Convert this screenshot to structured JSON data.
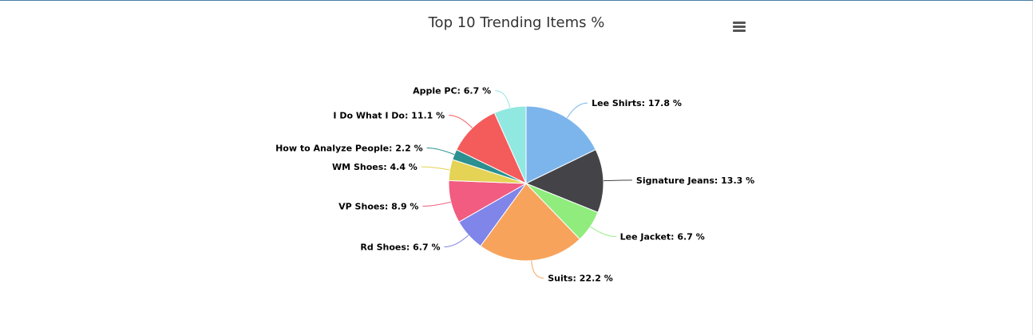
{
  "chart_data": {
    "type": "pie",
    "title": "Top 10 Trending Items %",
    "slices": [
      {
        "label": "Lee Shirts",
        "value": 17.8,
        "display": "Lee Shirts: 17.8 %",
        "color": "#7cb5ec"
      },
      {
        "label": "Signature Jeans",
        "value": 13.3,
        "display": "Signature Jeans: 13.3 %",
        "color": "#434348"
      },
      {
        "label": "Lee Jacket",
        "value": 6.7,
        "display": "Lee Jacket: 6.7 %",
        "color": "#90ed7d"
      },
      {
        "label": "Suits",
        "value": 22.2,
        "display": "Suits: 22.2 %",
        "color": "#f7a35c"
      },
      {
        "label": "Rd Shoes",
        "value": 6.7,
        "display": "Rd Shoes: 6.7 %",
        "color": "#8085e9"
      },
      {
        "label": "VP Shoes",
        "value": 8.9,
        "display": "VP Shoes: 8.9 %",
        "color": "#f15c80"
      },
      {
        "label": "WM Shoes",
        "value": 4.4,
        "display": "WM Shoes: 4.4 %",
        "color": "#e4d354"
      },
      {
        "label": "How to Analyze People",
        "value": 2.2,
        "display": "How to Analyze People: 2.2 %",
        "color": "#2b908f"
      },
      {
        "label": "I Do What I Do",
        "value": 11.1,
        "display": "I Do What I Do: 11.1 %",
        "color": "#f45b5b"
      },
      {
        "label": "Apple PC",
        "value": 6.7,
        "display": "Apple PC: 6.7 %",
        "color": "#91e8e1"
      }
    ]
  },
  "toolbar": {
    "menu_icon": "hamburger-menu-icon"
  }
}
